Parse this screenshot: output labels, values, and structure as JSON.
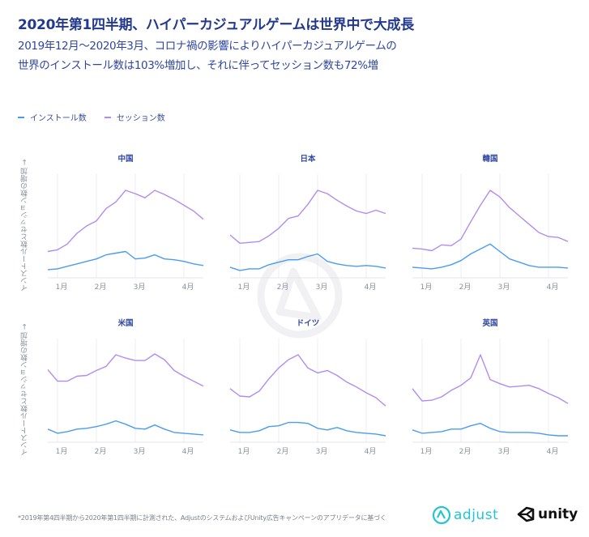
{
  "header": {
    "title": "2020年第1四半期、ハイパーカジュアルゲームは世界中で大成長",
    "subtitle_line1": "2019年12月〜2020年3月、コロナ禍の影響によりハイパーカジュアルゲームの",
    "subtitle_line2": "世界のインストール数は103%増加し、それに伴ってセッション数も72%増"
  },
  "legend": [
    {
      "label": "インストール数",
      "color": "#4a9cf0"
    },
    {
      "label": "セッション数",
      "color": "#b18cf0"
    }
  ],
  "y_axis_label": "インストール数とセッション数の増加 →",
  "footnote": "*2019年第4四半期から2020年第1四半期に計測された、AdjustのシステムおよびUnity広告キャンペーンのアプリデータに基づく",
  "logos": {
    "adjust": "adjust",
    "unity": "unity"
  },
  "colors": {
    "installs": "#4a9cf0",
    "sessions": "#b18cf0",
    "title": "#233a8c",
    "grid": "#ececf0",
    "watermark": "#f1f1f3"
  },
  "chart_data": [
    {
      "type": "line",
      "title": "中国",
      "x_ticks": [
        "1月",
        "2月",
        "3月",
        "4月"
      ],
      "x_tick_positions": [
        1,
        5,
        9,
        14
      ],
      "ylim": [
        0,
        100
      ],
      "series": [
        {
          "name": "インストール数",
          "values": [
            4,
            5,
            8,
            11,
            14,
            17,
            22,
            24,
            26,
            17,
            18,
            22,
            17,
            16,
            14,
            11,
            9
          ]
        },
        {
          "name": "セッション数",
          "values": [
            26,
            28,
            35,
            48,
            57,
            63,
            78,
            86,
            100,
            96,
            91,
            100,
            95,
            89,
            82,
            75,
            65
          ]
        }
      ]
    },
    {
      "type": "line",
      "title": "日本",
      "x_ticks": [
        "1月",
        "2月",
        "3月",
        "4月"
      ],
      "x_tick_positions": [
        1,
        5,
        9,
        14
      ],
      "ylim": [
        0,
        100
      ],
      "series": [
        {
          "name": "インストール数",
          "values": [
            7,
            3,
            5,
            5,
            10,
            13,
            16,
            16,
            20,
            23,
            14,
            11,
            9,
            8,
            9,
            8,
            6
          ]
        },
        {
          "name": "セッション数",
          "values": [
            46,
            36,
            37,
            38,
            45,
            54,
            66,
            69,
            83,
            100,
            96,
            88,
            81,
            75,
            72,
            76,
            72
          ]
        }
      ]
    },
    {
      "type": "line",
      "title": "韓国",
      "x_ticks": [
        "1月",
        "2月",
        "3月",
        "4月"
      ],
      "x_tick_positions": [
        1,
        5,
        9,
        14
      ],
      "ylim": [
        0,
        100
      ],
      "series": [
        {
          "name": "インストール数",
          "values": [
            7,
            6,
            5,
            7,
            10,
            15,
            23,
            29,
            35,
            26,
            17,
            13,
            9,
            7,
            7,
            7,
            6
          ]
        },
        {
          "name": "セッション数",
          "values": [
            30,
            29,
            27,
            34,
            33,
            41,
            62,
            82,
            100,
            92,
            79,
            69,
            59,
            49,
            44,
            43,
            38
          ]
        }
      ]
    },
    {
      "type": "line",
      "title": "米国",
      "x_ticks": [
        "1月",
        "2月",
        "3月",
        "4月"
      ],
      "x_tick_positions": [
        1,
        5,
        9,
        14
      ],
      "ylim": [
        0,
        100
      ],
      "series": [
        {
          "name": "インストール数",
          "values": [
            10,
            5,
            7,
            10,
            11,
            13,
            16,
            20,
            16,
            11,
            10,
            15,
            10,
            6,
            5,
            4,
            3
          ]
        },
        {
          "name": "セッション数",
          "values": [
            82,
            68,
            68,
            74,
            75,
            81,
            86,
            100,
            96,
            93,
            93,
            101,
            94,
            81,
            74,
            68,
            62
          ]
        }
      ]
    },
    {
      "type": "line",
      "title": "ドイツ",
      "x_ticks": [
        "1月",
        "2月",
        "3月",
        "4月"
      ],
      "x_tick_positions": [
        1,
        5,
        9,
        14
      ],
      "ylim": [
        0,
        100
      ],
      "series": [
        {
          "name": "インストール数",
          "values": [
            9,
            6,
            6,
            8,
            13,
            14,
            18,
            18,
            17,
            11,
            9,
            12,
            8,
            6,
            5,
            4,
            2
          ]
        },
        {
          "name": "セッション数",
          "values": [
            59,
            50,
            49,
            56,
            71,
            84,
            94,
            100,
            84,
            78,
            81,
            75,
            67,
            61,
            54,
            48,
            38
          ]
        }
      ]
    },
    {
      "type": "line",
      "title": "英国",
      "x_ticks": [
        "1月",
        "2月",
        "3月",
        "4月"
      ],
      "x_tick_positions": [
        1,
        5,
        9,
        14
      ],
      "ylim": [
        0,
        100
      ],
      "series": [
        {
          "name": "インストール数",
          "values": [
            9,
            5,
            6,
            7,
            10,
            10,
            14,
            17,
            11,
            7,
            6,
            6,
            6,
            5,
            3,
            2,
            2
          ]
        },
        {
          "name": "セッション数",
          "values": [
            59,
            44,
            45,
            49,
            57,
            63,
            72,
            100,
            70,
            65,
            61,
            62,
            63,
            59,
            53,
            48,
            41
          ]
        }
      ]
    }
  ]
}
